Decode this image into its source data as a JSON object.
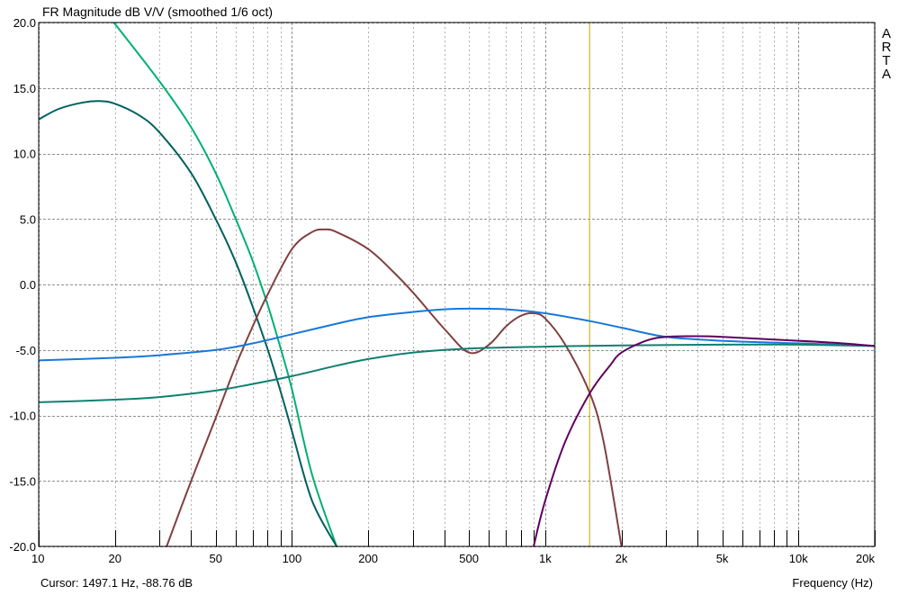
{
  "chart_data": {
    "type": "line",
    "title": "FR Magnitude dB V/V (smoothed 1/6 oct)",
    "xlabel": "Frequency (Hz)",
    "ylabel": "",
    "x_scale": "log",
    "xlim": [
      10,
      20000
    ],
    "ylim": [
      -20,
      20
    ],
    "grid": true,
    "x_tick_labels": [
      {
        "value": 10,
        "label": "10"
      },
      {
        "value": 20,
        "label": "20"
      },
      {
        "value": 50,
        "label": "50"
      },
      {
        "value": 100,
        "label": "100"
      },
      {
        "value": 200,
        "label": "200"
      },
      {
        "value": 500,
        "label": "500"
      },
      {
        "value": 1000,
        "label": "1k"
      },
      {
        "value": 2000,
        "label": "2k"
      },
      {
        "value": 5000,
        "label": "5k"
      },
      {
        "value": 10000,
        "label": "10k"
      },
      {
        "value": 20000,
        "label": "20k"
      }
    ],
    "y_tick_labels": [
      {
        "value": 20,
        "label": "20.0"
      },
      {
        "value": 15,
        "label": "15.0"
      },
      {
        "value": 10,
        "label": "10.0"
      },
      {
        "value": 5,
        "label": "5.0"
      },
      {
        "value": 0,
        "label": "0.0"
      },
      {
        "value": -5,
        "label": "-5.0"
      },
      {
        "value": -10,
        "label": "-10.0"
      },
      {
        "value": -15,
        "label": "-15.0"
      },
      {
        "value": -20,
        "label": "-20.0"
      }
    ],
    "cursor_x": 1497.1,
    "series": [
      {
        "color": "#00b070",
        "x": [
          19.8,
          30,
          40,
          50,
          60,
          70,
          80,
          90,
          100,
          120,
          150
        ],
        "y": [
          20,
          15.5,
          12,
          8.5,
          5,
          1.8,
          -1.5,
          -4.8,
          -8,
          -14.5,
          -20
        ]
      },
      {
        "color": "#006060",
        "x": [
          10,
          12,
          15,
          17.5,
          20,
          25,
          30,
          40,
          50,
          60,
          70,
          80,
          90,
          100,
          120,
          150
        ],
        "y": [
          12.6,
          13.4,
          13.9,
          14,
          13.8,
          12.9,
          11.6,
          8.5,
          5,
          1.7,
          -1.7,
          -4.9,
          -8.1,
          -11.2,
          -16.5,
          -20
        ]
      },
      {
        "color": "#804040",
        "x": [
          32,
          40,
          50,
          60,
          70,
          80,
          100,
          120,
          135,
          150,
          200,
          250,
          300,
          400,
          500,
          600,
          700,
          800,
          900,
          1000,
          1200,
          1500,
          1700,
          2000
        ],
        "y": [
          -20,
          -15,
          -10.2,
          -6.2,
          -3.2,
          -0.8,
          2.7,
          4,
          4.2,
          4,
          2.7,
          1,
          -0.6,
          -3.4,
          -5.2,
          -4.6,
          -3.2,
          -2.4,
          -2.2,
          -2.6,
          -4.6,
          -8.3,
          -12,
          -20
        ]
      },
      {
        "color": "#1878d8",
        "x": [
          10,
          20,
          30,
          50,
          70,
          100,
          150,
          200,
          300,
          400,
          500,
          700,
          1000,
          1500,
          2000,
          3000,
          5000,
          10000,
          20000
        ],
        "y": [
          -5.8,
          -5.6,
          -5.4,
          -5,
          -4.5,
          -3.8,
          -3,
          -2.5,
          -2.1,
          -1.9,
          -1.85,
          -1.9,
          -2.2,
          -2.8,
          -3.3,
          -4,
          -4.3,
          -4.5,
          -4.7
        ]
      },
      {
        "color": "#108070",
        "x": [
          10,
          20,
          30,
          50,
          70,
          100,
          150,
          200,
          300,
          500,
          1000,
          2000,
          5000,
          10000,
          20000
        ],
        "y": [
          -9,
          -8.8,
          -8.6,
          -8.1,
          -7.6,
          -7,
          -6.2,
          -5.7,
          -5.2,
          -4.9,
          -4.75,
          -4.65,
          -4.6,
          -4.6,
          -4.7
        ]
      },
      {
        "color": "#600060",
        "x": [
          900,
          1000,
          1200,
          1500,
          1800,
          2000,
          2500,
          3000,
          4000,
          5000,
          7000,
          10000,
          15000,
          20000
        ],
        "y": [
          -20,
          -16.5,
          -12,
          -8.3,
          -6.2,
          -5.2,
          -4.3,
          -4,
          -3.95,
          -4,
          -4.15,
          -4.3,
          -4.5,
          -4.7
        ]
      }
    ]
  },
  "ui": {
    "cursor_readout": "Cursor: 1497.1 Hz, -88.76 dB",
    "brand_letters": [
      "A",
      "R",
      "T",
      "A"
    ]
  }
}
